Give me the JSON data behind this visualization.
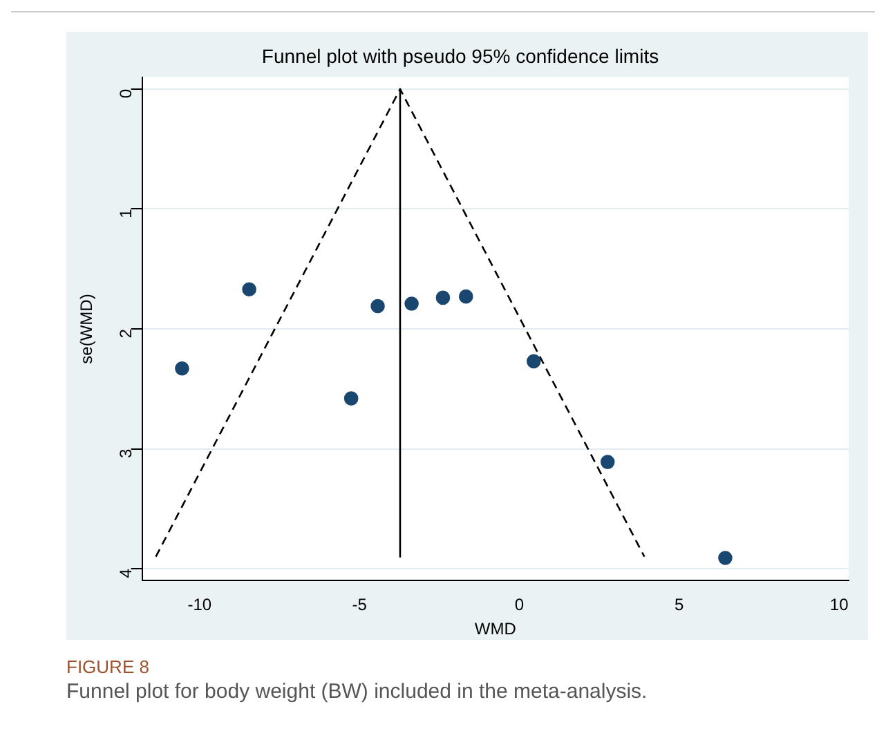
{
  "chart_data": {
    "type": "scatter",
    "title": "Funnel plot with pseudo 95% confidence limits",
    "xlabel": "WMD",
    "ylabel": "se(WMD)",
    "xlim": [
      -11.8,
      10.3
    ],
    "xticks": [
      -10,
      -5,
      0,
      5,
      10
    ],
    "ylim": [
      4.1,
      -0.1
    ],
    "yticks": [
      0,
      1,
      2,
      3,
      4
    ],
    "grid": "y",
    "legend": false,
    "series": [
      {
        "type": "scatter",
        "color": "#1a476f",
        "marker": "circle",
        "x": [
          -10.55,
          -8.45,
          -5.26,
          -4.43,
          -3.37,
          -2.39,
          -1.67,
          0.45,
          2.76,
          6.44
        ],
        "values": [
          2.33,
          1.67,
          2.58,
          1.81,
          1.79,
          1.74,
          1.73,
          2.27,
          3.11,
          3.91
        ]
      },
      {
        "type": "line",
        "color": "#000000",
        "marker": "none",
        "line_style": "solid",
        "x": [
          -3.73,
          -3.73
        ],
        "values": [
          0,
          3.9
        ]
      },
      {
        "type": "line",
        "color": "#000000",
        "marker": "none",
        "line_style": "dashed",
        "x": [
          -11.37,
          -3.73,
          3.91
        ],
        "values": [
          3.9,
          0,
          3.9
        ]
      }
    ],
    "annotations": [
      "FIGURE 8",
      "Funnel plot for body weight (BW) included in the meta-analysis."
    ]
  }
}
